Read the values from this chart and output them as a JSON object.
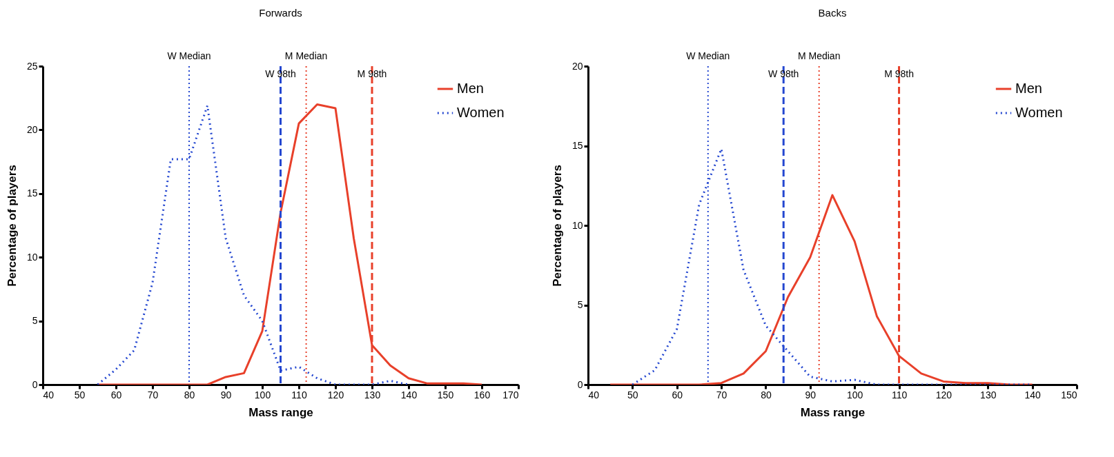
{
  "chart_data": [
    {
      "type": "line",
      "title": "Forwards",
      "xlabel": "Mass range",
      "ylabel": "Percentage of players",
      "xlim": [
        40,
        170
      ],
      "xticks": [
        40,
        50,
        60,
        70,
        80,
        90,
        100,
        110,
        120,
        130,
        140,
        150,
        160,
        170
      ],
      "ylim": [
        0,
        25
      ],
      "yticks": [
        0,
        5,
        10,
        15,
        20,
        25
      ],
      "grid": false,
      "legend": "top right",
      "marker": "none",
      "series": [
        {
          "name": "Men",
          "color": "#e8402a",
          "line_style": "solid",
          "x": [
            55,
            60,
            65,
            70,
            75,
            80,
            85,
            90,
            95,
            100,
            105,
            110,
            115,
            120,
            125,
            130,
            135,
            140,
            145,
            150,
            155,
            160
          ],
          "values": [
            0,
            0,
            0,
            0,
            0,
            0,
            0,
            0.6,
            0.9,
            4.2,
            13.5,
            20.5,
            22,
            21.7,
            11.5,
            3.1,
            1.5,
            0.5,
            0.1,
            0.1,
            0.1,
            0
          ]
        },
        {
          "name": "Women",
          "color": "#2447d0",
          "line_style": "dotted",
          "x": [
            55,
            60,
            65,
            70,
            75,
            80,
            85,
            90,
            95,
            100,
            105,
            110,
            115,
            120,
            125,
            130,
            135,
            140
          ],
          "values": [
            0,
            1.2,
            2.7,
            8,
            17.7,
            17.7,
            21.9,
            11.5,
            7,
            5,
            1.1,
            1.4,
            0.5,
            0,
            0,
            0,
            0.3,
            0
          ]
        }
      ],
      "ref_lines": [
        {
          "axis": "x",
          "value": 80,
          "label": "W Median",
          "color": "#2447d0",
          "line_style": "dotted"
        },
        {
          "axis": "x",
          "value": 112,
          "label": "M Median",
          "color": "#e8402a",
          "line_style": "dotted"
        },
        {
          "axis": "x",
          "value": 105,
          "label": "W 98th",
          "color": "#2447d0",
          "line_style": "dashed"
        },
        {
          "axis": "x",
          "value": 130,
          "label": "M 98th",
          "color": "#e8402a",
          "line_style": "dashed"
        }
      ]
    },
    {
      "type": "line",
      "title": "Backs",
      "xlabel": "Mass range",
      "ylabel": "Percentage of players",
      "xlim": [
        40,
        150
      ],
      "xticks": [
        40,
        50,
        60,
        70,
        80,
        90,
        100,
        110,
        120,
        130,
        140,
        150
      ],
      "ylim": [
        0,
        20
      ],
      "yticks": [
        0,
        5,
        10,
        15,
        20
      ],
      "grid": false,
      "legend": "top right",
      "marker": "none",
      "series": [
        {
          "name": "Men",
          "color": "#e8402a",
          "line_style": "solid",
          "x": [
            45,
            50,
            55,
            60,
            65,
            70,
            75,
            80,
            85,
            90,
            95,
            100,
            105,
            110,
            115,
            120,
            125,
            130,
            135,
            140
          ],
          "values": [
            0,
            0,
            0,
            0,
            0,
            0.1,
            0.7,
            2.1,
            5.5,
            8,
            11.9,
            9,
            4.3,
            1.8,
            0.7,
            0.2,
            0.1,
            0.1,
            0,
            0
          ]
        },
        {
          "name": "Women",
          "color": "#2447d0",
          "line_style": "dotted",
          "x": [
            50,
            55,
            60,
            65,
            70,
            75,
            80,
            85,
            90,
            95,
            100,
            105,
            110,
            115,
            120,
            125,
            130,
            135,
            140
          ],
          "values": [
            0,
            0.9,
            3.5,
            11.3,
            14.8,
            7.2,
            3.7,
            2.1,
            0.5,
            0.2,
            0.3,
            0,
            0,
            0,
            0,
            0,
            0,
            0,
            0
          ]
        }
      ],
      "ref_lines": [
        {
          "axis": "x",
          "value": 67,
          "label": "W Median",
          "color": "#2447d0",
          "line_style": "dotted"
        },
        {
          "axis": "x",
          "value": 92,
          "label": "M Median",
          "color": "#e8402a",
          "line_style": "dotted"
        },
        {
          "axis": "x",
          "value": 84,
          "label": "W 98th",
          "color": "#2447d0",
          "line_style": "dashed"
        },
        {
          "axis": "x",
          "value": 110,
          "label": "M 98th",
          "color": "#e8402a",
          "line_style": "dashed"
        }
      ]
    }
  ]
}
